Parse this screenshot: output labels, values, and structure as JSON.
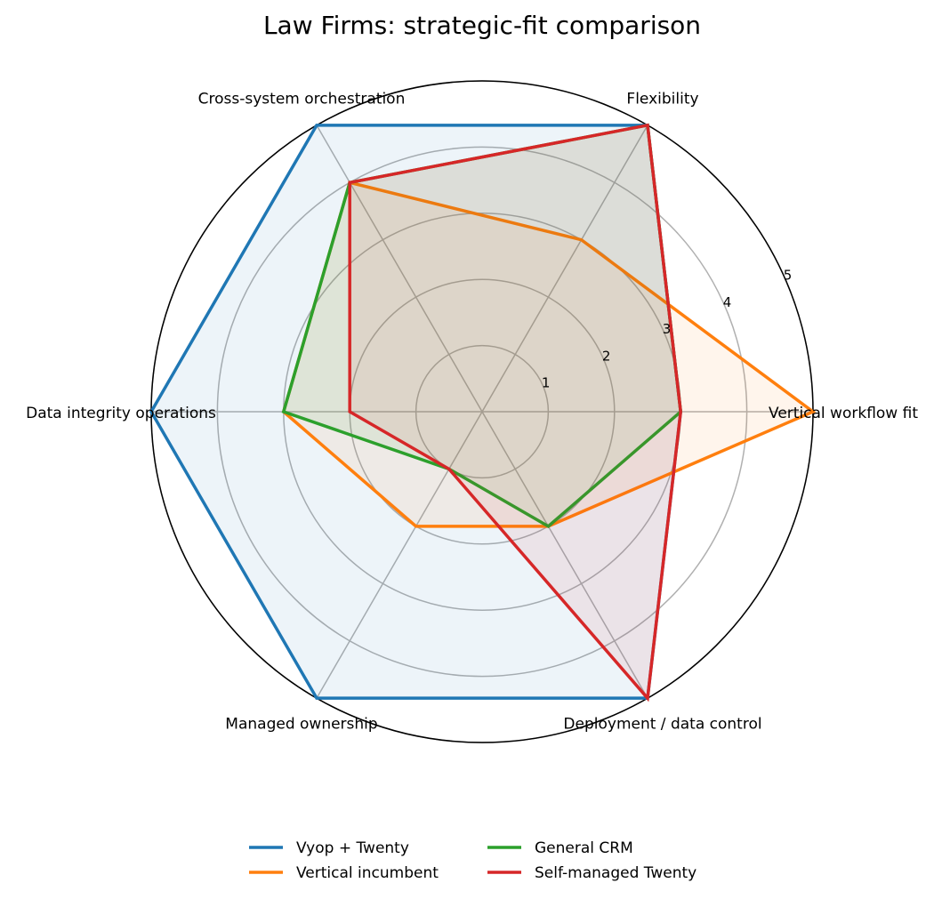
{
  "chart_data": {
    "type": "radar",
    "title": "Law Firms: strategic-fit comparison",
    "categories": [
      "Vertical workflow fit",
      "Flexibility",
      "Cross-system orchestration",
      "Data integrity operations",
      "Managed ownership",
      "Deployment / data control"
    ],
    "rlim": [
      0,
      5
    ],
    "rticks": [
      1,
      2,
      3,
      4,
      5
    ],
    "grid": true,
    "legend": "bottom",
    "series": [
      {
        "name": "Vyop + Twenty",
        "color": "#1f77b4",
        "values": [
          3,
          5,
          5,
          5,
          5,
          5
        ]
      },
      {
        "name": "Vertical incumbent",
        "color": "#ff7f0e",
        "values": [
          5,
          3,
          4,
          3,
          2,
          2
        ]
      },
      {
        "name": "General CRM",
        "color": "#2ca02c",
        "values": [
          3,
          5,
          4,
          3,
          1,
          2
        ]
      },
      {
        "name": "Self-managed Twenty",
        "color": "#d62728",
        "values": [
          3,
          5,
          4,
          2,
          1,
          5
        ]
      }
    ]
  }
}
